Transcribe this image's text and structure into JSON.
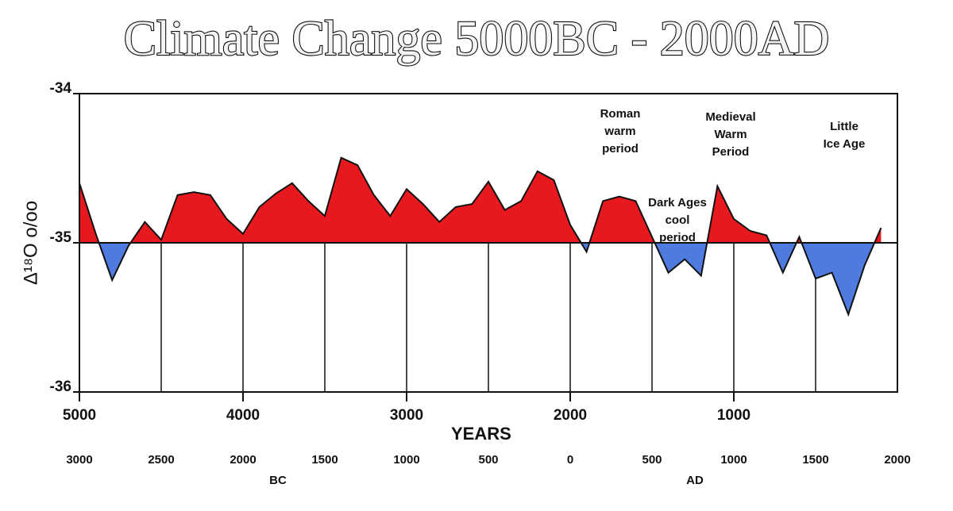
{
  "chart_data": {
    "type": "area",
    "title": "Climate Change 5000BC - 2000AD",
    "xlabel": "YEARS",
    "ylabel": "Δ¹⁸O o/oo",
    "era_labels": [
      "BC",
      "AD"
    ],
    "baseline": -35,
    "colors": {
      "above": "#e8191e",
      "below": "#4f7be0"
    },
    "x": [
      5000,
      4900,
      4800,
      4700,
      4600,
      4500,
      4400,
      4300,
      4200,
      4100,
      4000,
      3900,
      3800,
      3700,
      3600,
      3500,
      3400,
      3300,
      3200,
      3100,
      3000,
      2900,
      2800,
      2700,
      2600,
      2500,
      2400,
      2300,
      2200,
      2100,
      2000,
      1900,
      1800,
      1700,
      1600,
      1500,
      1400,
      1300,
      1200,
      1100,
      1000,
      900,
      800,
      700,
      600,
      500,
      400,
      300,
      200,
      100
    ],
    "values": [
      -34.6,
      -34.94,
      -35.25,
      -35.02,
      -34.86,
      -34.98,
      -34.68,
      -34.66,
      -34.68,
      -34.84,
      -34.94,
      -34.76,
      -34.67,
      -34.6,
      -34.72,
      -34.82,
      -34.43,
      -34.48,
      -34.68,
      -34.82,
      -34.64,
      -34.74,
      -34.86,
      -34.76,
      -34.74,
      -34.59,
      -34.78,
      -34.72,
      -34.52,
      -34.58,
      -34.88,
      -35.06,
      -34.72,
      -34.69,
      -34.72,
      -34.96,
      -35.2,
      -35.11,
      -35.22,
      -34.62,
      -34.84,
      -34.92,
      -34.95,
      -35.2,
      -34.96,
      -35.24,
      -35.2,
      -35.48,
      -35.15,
      -34.9
    ],
    "xlim": [
      5000,
      0
    ],
    "xticks": [
      5000,
      4000,
      3000,
      2000,
      1000
    ],
    "x2ticks": [
      {
        "value": 5000,
        "label": "3000"
      },
      {
        "value": 4500,
        "label": "2500"
      },
      {
        "value": 4000,
        "label": "2000"
      },
      {
        "value": 3500,
        "label": "1500"
      },
      {
        "value": 3000,
        "label": "1000"
      },
      {
        "value": 2500,
        "label": "500"
      },
      {
        "value": 2000,
        "label": "0"
      },
      {
        "value": 1500,
        "label": "500"
      },
      {
        "value": 1000,
        "label": "1000"
      },
      {
        "value": 500,
        "label": "1500"
      },
      {
        "value": 0,
        "label": "2000"
      }
    ],
    "ylim": [
      -36,
      -34
    ],
    "yticks": [
      -36,
      -35,
      -34
    ],
    "annotations": [
      [
        "Roman",
        "warm",
        "period"
      ],
      [
        "Dark Ages",
        "cool",
        "period"
      ],
      [
        "Medieval",
        "Warm",
        "Period"
      ],
      [
        "Little",
        "Ice Age"
      ]
    ]
  }
}
